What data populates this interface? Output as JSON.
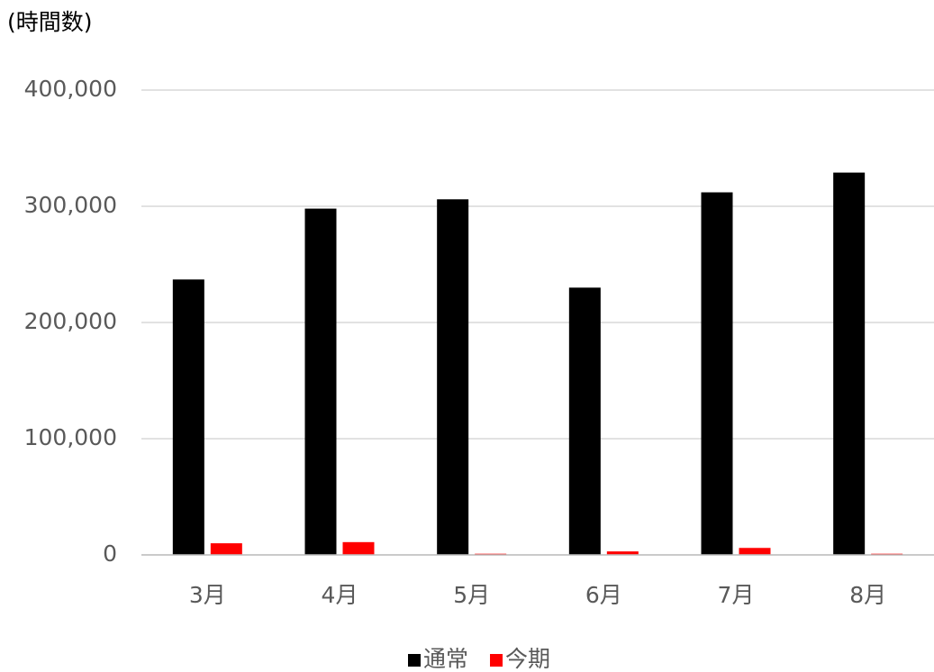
{
  "chart_data": {
    "type": "bar",
    "y_axis_label": "(時間数)",
    "categories": [
      "3月",
      "4月",
      "5月",
      "6月",
      "7月",
      "8月"
    ],
    "series": [
      {
        "name": "通常",
        "color": "#000000",
        "values": [
          237000,
          298000,
          306000,
          230000,
          312000,
          329000
        ]
      },
      {
        "name": "今期",
        "color": "#ff0000",
        "values": [
          10000,
          11000,
          1000,
          3000,
          6000,
          1000
        ]
      }
    ],
    "ylim": [
      0,
      400000
    ],
    "yticks": [
      0,
      {
        "value": 100000,
        "label": "100,000"
      },
      {
        "value": 200000,
        "label": "200,000"
      },
      {
        "value": 300000,
        "label": "300,000"
      },
      {
        "value": 400000,
        "label": "400,000"
      }
    ],
    "grid": true,
    "legend": "bottom"
  }
}
